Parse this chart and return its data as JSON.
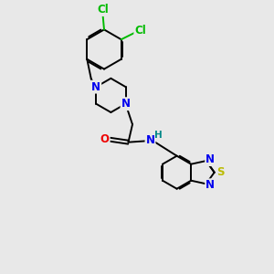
{
  "background_color": "#e8e8e8",
  "bond_color": "#000000",
  "atom_colors": {
    "N": "#0000ee",
    "O": "#ee0000",
    "S": "#bbbb00",
    "Cl": "#00bb00",
    "H": "#008888",
    "C": "#000000"
  }
}
